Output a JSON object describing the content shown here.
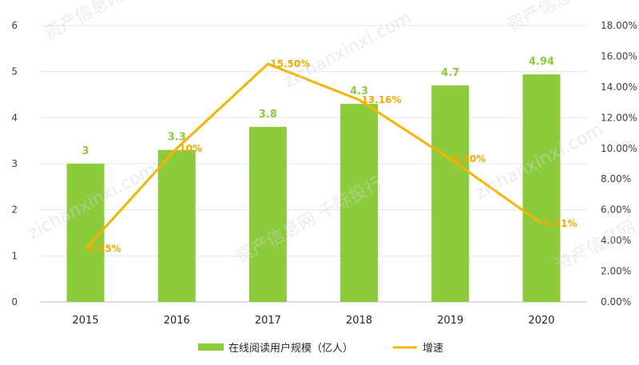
{
  "chart_data": {
    "type": "bar",
    "categories": [
      "2015",
      "2016",
      "2017",
      "2018",
      "2019",
      "2020"
    ],
    "series": [
      {
        "name": "在线阅读用户规模（亿人）",
        "type": "bar",
        "axis": "left",
        "values": [
          3,
          3.3,
          3.8,
          4.3,
          4.7,
          4.94
        ],
        "labels": [
          "3",
          "3.3",
          "3.8",
          "4.3",
          "4.7",
          "4.94"
        ],
        "color": "#8CCB3C"
      },
      {
        "name": "增速",
        "type": "line",
        "axis": "right",
        "values": [
          3.45,
          10,
          15.5,
          13.16,
          9.3,
          5.11
        ],
        "labels": [
          "3.45%",
          "10%",
          "15.50%",
          "13.16%",
          "9.30%",
          "5.11%"
        ],
        "color": "#F5B400"
      }
    ],
    "y_left": {
      "min": 0,
      "max": 6,
      "ticks": [
        "0",
        "1",
        "2",
        "3",
        "4",
        "5",
        "6"
      ]
    },
    "y_right": {
      "min": 0,
      "max": 18,
      "ticks": [
        "0.00%",
        "2.00%",
        "4.00%",
        "6.00%",
        "8.00%",
        "10.00%",
        "12.00%",
        "14.00%",
        "16.00%",
        "18.00%"
      ]
    },
    "grid": true,
    "legend_position": "bottom"
  },
  "watermark": {
    "cn": "资产信息网 千际投行",
    "en": "zichanxinxi.com"
  }
}
